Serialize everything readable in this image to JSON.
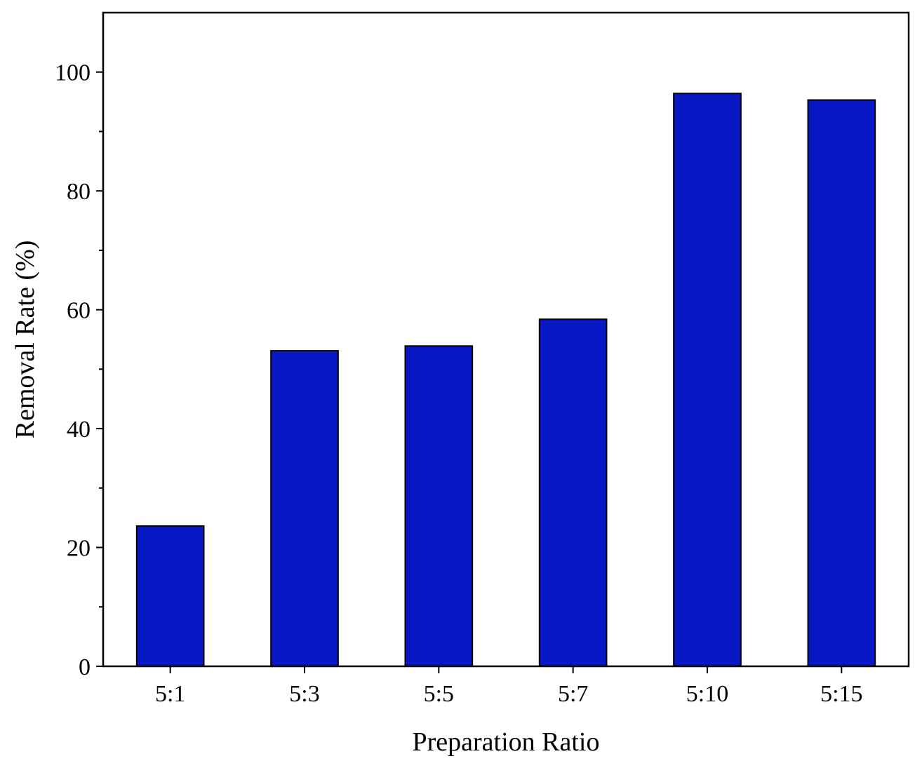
{
  "chart_data": {
    "type": "bar",
    "categories": [
      "5:1",
      "5:3",
      "5:5",
      "5:7",
      "5:10",
      "5:15"
    ],
    "values": [
      23.6,
      53.1,
      53.9,
      58.4,
      96.4,
      95.3
    ],
    "title": "",
    "xlabel": "Preparation Ratio",
    "ylabel": "Removal Rate (%)",
    "ylim": [
      0,
      110
    ],
    "yticks": [
      0,
      20,
      40,
      60,
      80,
      100
    ],
    "yticks_minor": [
      10,
      30,
      50,
      70,
      90
    ],
    "grid": false,
    "legend": "none",
    "bar_color": "#0718c4",
    "bar_edge_color": "#000000"
  }
}
